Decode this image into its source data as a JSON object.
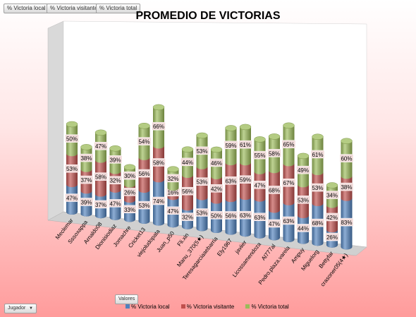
{
  "field_buttons": [
    "% Victoria local",
    "% Victoria visitante",
    "% Victoria total"
  ],
  "values_button": "Valores",
  "filter_button": {
    "label": "Jugador",
    "icon": "dropdown-arrow-icon"
  },
  "colors": {
    "local": "#4f81bd",
    "visitante": "#c0504d",
    "total": "#9bbb59"
  },
  "chart_data": {
    "type": "bar",
    "subtype": "3d-stacked-column",
    "title": "PROMEDIO DE VICTORIAS",
    "xlabel": "",
    "ylabel": "",
    "categories": [
      "Meclemar",
      "Sssoxappa",
      "Arnaldo08",
      "Dionisiodiaz",
      "Jomachre",
      "Cricket13",
      "viejoludopata",
      "Juan_p50",
      "Fli.xin",
      "Manu_370(5★)",
      "Teresagarciaaebarria",
      "Ely1967",
      "javiier",
      "Licossamendoza",
      "Al777al",
      "Pedro.plaza.varela",
      "Ampuy",
      "Miguelorg",
      "Bettyfar",
      "crasoner05(4★)"
    ],
    "series": [
      {
        "name": "% Victoria local",
        "values": [
          0.47,
          0.39,
          0.37,
          0.47,
          0.33,
          0.53,
          0.74,
          0.47,
          0.32,
          0.53,
          0.5,
          0.56,
          0.63,
          0.63,
          0.47,
          0.63,
          0.44,
          0.68,
          0.26,
          0.83
        ]
      },
      {
        "name": "% Victoria visitante",
        "values": [
          0.53,
          0.37,
          0.58,
          0.32,
          0.26,
          0.56,
          0.58,
          0.16,
          0.56,
          0.53,
          0.42,
          0.63,
          0.59,
          0.47,
          0.68,
          0.67,
          0.53,
          0.53,
          0.42,
          0.38
        ]
      },
      {
        "name": "% Victoria total",
        "values": [
          0.5,
          0.38,
          0.47,
          0.39,
          0.3,
          0.54,
          0.66,
          0.32,
          0.44,
          0.53,
          0.46,
          0.59,
          0.61,
          0.55,
          0.58,
          0.65,
          0.49,
          0.61,
          0.34,
          0.6
        ]
      }
    ],
    "data_labels": true,
    "data_label_format": "percent",
    "legend": "bottom"
  }
}
